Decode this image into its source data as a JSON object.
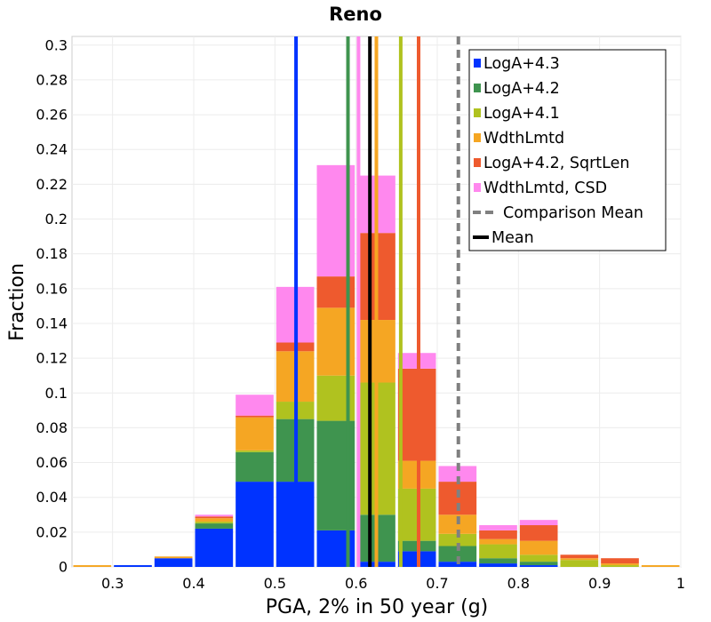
{
  "chart_data": {
    "type": "bar",
    "stacked": true,
    "title": "Reno",
    "xlabel": "PGA, 2% in 50 year (g)",
    "ylabel": "Fraction",
    "xlim": [
      0.25,
      1.0
    ],
    "ylim": [
      0,
      0.305
    ],
    "x_ticks": [
      "0.3",
      "0.4",
      "0.5",
      "0.6",
      "0.7",
      "0.8",
      "0.9",
      "1"
    ],
    "y_ticks": [
      "0",
      "0.02",
      "0.04",
      "0.06",
      "0.08",
      "0.1",
      "0.12",
      "0.14",
      "0.16",
      "0.18",
      "0.2",
      "0.22",
      "0.24",
      "0.26",
      "0.28",
      "0.3"
    ],
    "bin_width": 0.05,
    "bin_centers": [
      0.275,
      0.325,
      0.375,
      0.425,
      0.475,
      0.525,
      0.575,
      0.625,
      0.675,
      0.725,
      0.775,
      0.825,
      0.875,
      0.925,
      0.975
    ],
    "series": [
      {
        "name": "LogA+4.3",
        "color": "#0033ff",
        "values": [
          0,
          0.001,
          0.005,
          0.022,
          0.049,
          0.049,
          0.021,
          0.003,
          0.009,
          0.003,
          0.002,
          0.001,
          0,
          0,
          0
        ]
      },
      {
        "name": "LogA+4.2",
        "color": "#3f944f",
        "values": [
          0,
          0,
          0,
          0.003,
          0.017,
          0.036,
          0.063,
          0.027,
          0.006,
          0.009,
          0.003,
          0.002,
          0,
          0,
          0
        ]
      },
      {
        "name": "LogA+4.1",
        "color": "#b0c21f",
        "values": [
          0,
          0,
          0,
          0.001,
          0.001,
          0.01,
          0.026,
          0.076,
          0.03,
          0.007,
          0.008,
          0.004,
          0.004,
          0.001,
          0
        ]
      },
      {
        "name": "WdthLmtd",
        "color": "#f5a623",
        "values": [
          0.001,
          0,
          0.001,
          0.002,
          0.019,
          0.029,
          0.039,
          0.036,
          0.016,
          0.011,
          0.003,
          0.008,
          0.001,
          0.001,
          0.001
        ]
      },
      {
        "name": "LogA+4.2, SqrtLen",
        "color": "#ee5a2e",
        "values": [
          0,
          0,
          0,
          0.001,
          0.001,
          0.005,
          0.018,
          0.05,
          0.053,
          0.019,
          0.005,
          0.009,
          0.002,
          0.003,
          0
        ]
      },
      {
        "name": "WdthLmtd, CSD",
        "color": "#ff88ee",
        "values": [
          0,
          0,
          0,
          0.001,
          0.012,
          0.032,
          0.064,
          0.033,
          0.009,
          0.009,
          0.003,
          0.003,
          0,
          0,
          0
        ]
      }
    ],
    "mean_lines": [
      {
        "name": "LogA+4.3",
        "x": 0.526,
        "color": "#0033ff"
      },
      {
        "name": "LogA+4.2",
        "x": 0.59,
        "color": "#3f944f"
      },
      {
        "name": "WdthLmtd, CSD",
        "x": 0.603,
        "color": "#ff88ee"
      },
      {
        "name": "WdthLmtd",
        "x": 0.625,
        "color": "#f5a623"
      },
      {
        "name": "LogA+4.1",
        "x": 0.655,
        "color": "#b0c21f"
      },
      {
        "name": "LogA+4.2, SqrtLen",
        "x": 0.677,
        "color": "#ee5a2e"
      }
    ],
    "mean": {
      "name": "Mean",
      "x": 0.617,
      "color": "#000000"
    },
    "comparison_mean": {
      "name": "Comparison Mean",
      "x": 0.726,
      "color": "#808080"
    },
    "legend": {
      "placement": "top-right",
      "entries": [
        {
          "label": "LogA+4.3",
          "color": "#0033ff",
          "style": "box"
        },
        {
          "label": "LogA+4.2",
          "color": "#3f944f",
          "style": "box"
        },
        {
          "label": "LogA+4.1",
          "color": "#b0c21f",
          "style": "box"
        },
        {
          "label": "WdthLmtd",
          "color": "#f5a623",
          "style": "box"
        },
        {
          "label": "LogA+4.2, SqrtLen",
          "color": "#ee5a2e",
          "style": "box"
        },
        {
          "label": "WdthLmtd, CSD",
          "color": "#ff88ee",
          "style": "box"
        },
        {
          "label": "Comparison Mean",
          "color": "#808080",
          "style": "dashed"
        },
        {
          "label": "Mean",
          "color": "#000000",
          "style": "solid"
        }
      ]
    },
    "grid": true
  }
}
